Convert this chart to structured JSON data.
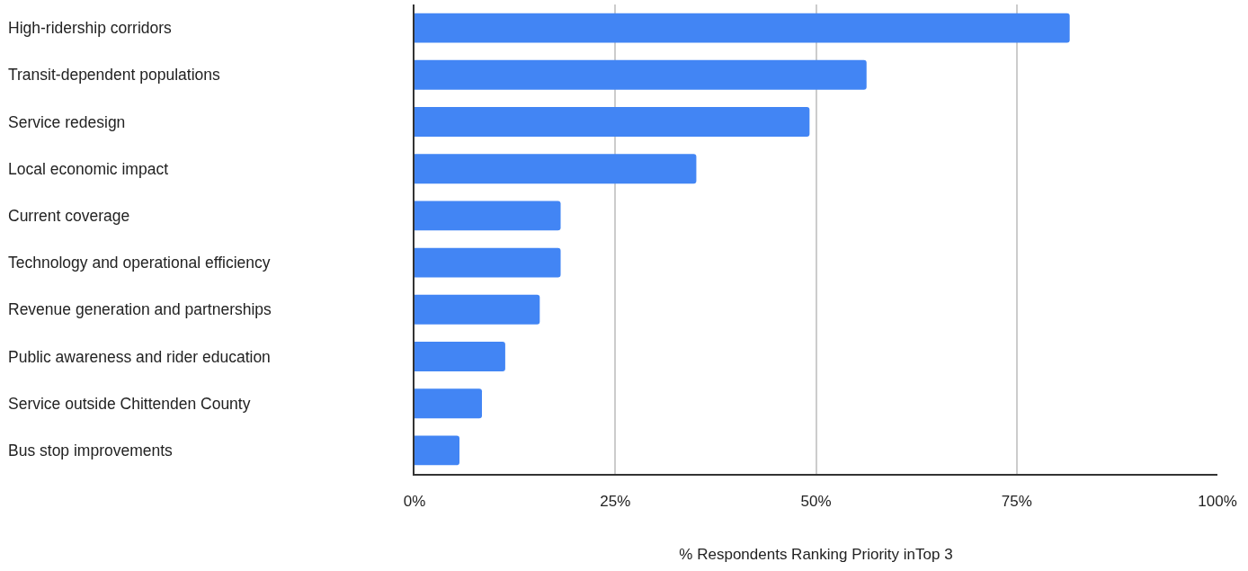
{
  "chart_data": {
    "type": "bar",
    "orientation": "horizontal",
    "xlabel": "% Respondents Ranking Priority inTop 3",
    "categories": [
      "High-ridership corridors",
      "Transit-dependent populations",
      "Service redesign",
      "Local economic impact",
      "Current coverage",
      "Technology and operational efficiency",
      "Revenue generation and partnerships",
      "Public awareness and rider education",
      "Service outside Chittenden County",
      "Bus stop improvements"
    ],
    "values": [
      81.6,
      56.3,
      49.2,
      35.1,
      18.2,
      18.2,
      15.6,
      11.3,
      8.4,
      5.6
    ],
    "color": "#4285f4",
    "xlim": [
      0,
      100
    ],
    "xticks": [
      {
        "value": 0,
        "label": "0%"
      },
      {
        "value": 25,
        "label": "25%"
      },
      {
        "value": 50,
        "label": "50%"
      },
      {
        "value": 75,
        "label": "75%"
      },
      {
        "value": 100,
        "label": "100%"
      }
    ],
    "grid": "x"
  }
}
